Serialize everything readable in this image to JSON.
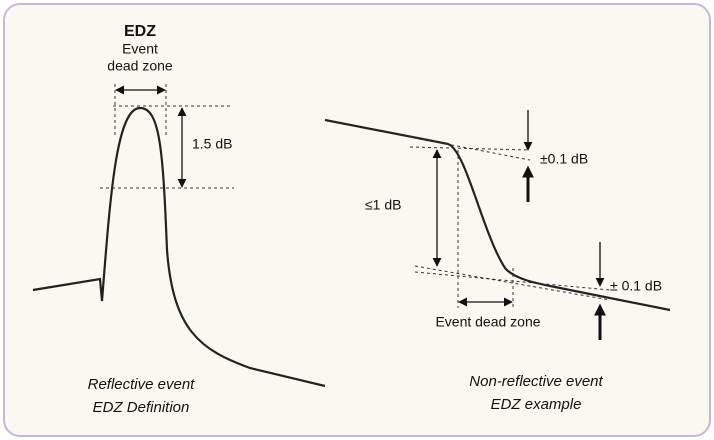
{
  "left_panel": {
    "title": "EDZ",
    "subtitle": [
      "Event",
      "dead zone"
    ],
    "height_label": "1.5 dB",
    "caption": [
      "Reflective event",
      "EDZ Definition"
    ]
  },
  "right_panel": {
    "top_label": "±0.1 dB",
    "drop_label": "≤1 dB",
    "bottom_label": "± 0.1 dB",
    "zone_label": "Event dead zone",
    "caption": [
      "Non-reflective event",
      "EDZ example"
    ]
  }
}
